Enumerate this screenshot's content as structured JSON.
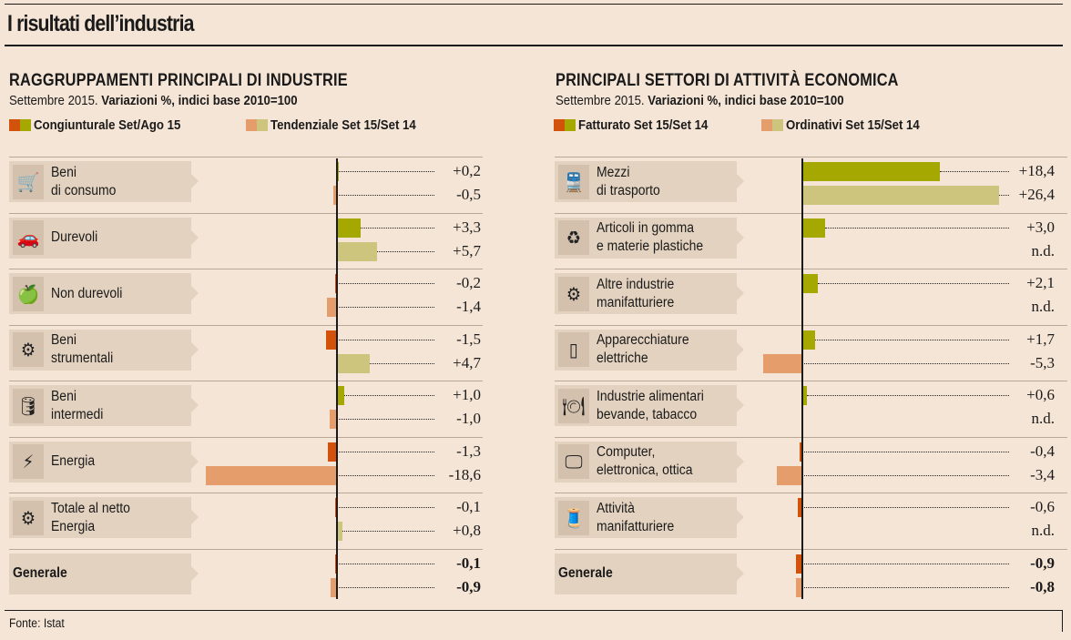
{
  "title": "I risultati dell’industria",
  "source": "Fonte: Istat",
  "colors": {
    "c1_neg": "#d2520c",
    "c1_pos": "#a5a800",
    "c2_neg": "#e59d6c",
    "c2_pos": "#cdc57d",
    "label_bg": "#e3d2bf",
    "bg": "#f5e5d6"
  },
  "chart_data": [
    {
      "type": "bar",
      "orientation": "horizontal",
      "title": "RAGGRUPPAMENTI PRINCIPALI DI INDUSTRIE",
      "subtitle_plain": "Settembre 2015.",
      "subtitle_bold": "Variazioni %, indici base 2010=100",
      "legend": [
        "Congiunturale Set/Ago 15",
        "Tendenziale Set 15/Set 14"
      ],
      "categories": [
        {
          "label1": "Beni",
          "label2": "di consumo",
          "icon": "shopping-cart-icon",
          "bold": false
        },
        {
          "label1": "Durevoli",
          "label2": "",
          "icon": "car-icon",
          "bold": false
        },
        {
          "label1": "Non durevoli",
          "label2": "",
          "icon": "apple-core-icon",
          "bold": false
        },
        {
          "label1": "Beni",
          "label2": "strumentali",
          "icon": "gears-icon",
          "bold": false
        },
        {
          "label1": "Beni",
          "label2": "intermedi",
          "icon": "barrel-icon",
          "bold": false
        },
        {
          "label1": "Energia",
          "label2": "",
          "icon": "power-pylon-icon",
          "bold": false
        },
        {
          "label1": "Totale al netto",
          "label2": "Energia",
          "icon": "machinery-icon",
          "bold": false
        },
        {
          "label1": "Generale",
          "label2": "",
          "icon": "",
          "bold": true
        }
      ],
      "series": [
        {
          "name": "Congiunturale Set/Ago 15",
          "values": [
            0.2,
            3.3,
            -0.2,
            -1.5,
            1.0,
            -1.3,
            -0.1,
            -0.1
          ],
          "labels": [
            "+0,2",
            "+3,3",
            "-0,2",
            "-1,5",
            "+1,0",
            "-1,3",
            "-0,1",
            "-0,1"
          ]
        },
        {
          "name": "Tendenziale Set 15/Set 14",
          "values": [
            -0.5,
            5.7,
            -1.4,
            4.7,
            -1.0,
            -18.6,
            0.8,
            -0.9
          ],
          "labels": [
            "-0,5",
            "+5,7",
            "-1,4",
            "+4,7",
            "-1,0",
            "-18,6",
            "+0,8",
            "-0,9"
          ]
        }
      ]
    },
    {
      "type": "bar",
      "orientation": "horizontal",
      "title": "PRINCIPALI SETTORI DI ATTIVITÀ ECONOMICA",
      "subtitle_plain": "Settembre 2015.",
      "subtitle_bold": "Variazioni %, indici base 2010=100",
      "legend": [
        "Fatturato Set 15/Set 14",
        "Ordinativi Set 15/Set 14"
      ],
      "categories": [
        {
          "label1": "Mezzi",
          "label2": "di trasporto",
          "icon": "train-icon",
          "bold": false
        },
        {
          "label1": "Articoli in gomma",
          "label2": "e materie plastiche",
          "icon": "recycle-icon",
          "bold": false
        },
        {
          "label1": "Altre industrie",
          "label2": "manifatturiere",
          "icon": "gears-icon",
          "bold": false
        },
        {
          "label1": "Apparecchiature",
          "label2": "elettriche",
          "icon": "refrigerator-icon",
          "bold": false
        },
        {
          "label1": "Industrie alimentari",
          "label2": "bevande, tabacco",
          "icon": "plate-cutlery-icon",
          "bold": false
        },
        {
          "label1": "Computer,",
          "label2": "elettronica, ottica",
          "icon": "monitor-icon",
          "bold": false
        },
        {
          "label1": "Attività",
          "label2": "manifatturiere",
          "icon": "thread-spool-icon",
          "bold": false
        },
        {
          "label1": "Generale",
          "label2": "",
          "icon": "",
          "bold": true
        }
      ],
      "series": [
        {
          "name": "Fatturato Set 15/Set 14",
          "values": [
            18.4,
            3.0,
            2.1,
            1.7,
            0.6,
            -0.4,
            -0.6,
            -0.9
          ],
          "labels": [
            "+18,4",
            "+3,0",
            "+2,1",
            "+1,7",
            "+0,6",
            "-0,4",
            "-0,6",
            "-0,9"
          ]
        },
        {
          "name": "Ordinativi Set 15/Set 14",
          "values": [
            26.4,
            null,
            null,
            -5.3,
            null,
            -3.4,
            null,
            -0.8
          ],
          "labels": [
            "+26,4",
            "n.d.",
            "n.d.",
            "-5,3",
            "n.d.",
            "-3,4",
            "n.d.",
            "-0,8"
          ]
        }
      ]
    }
  ]
}
